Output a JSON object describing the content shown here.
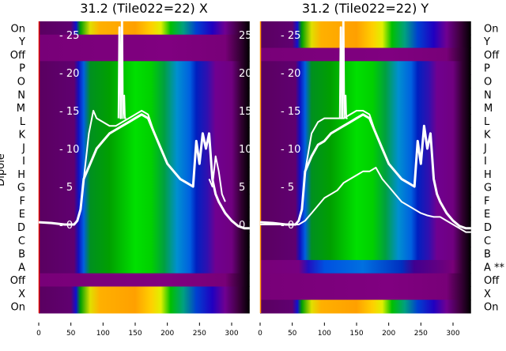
{
  "chart_data": {
    "type": "heatmap",
    "ylabel": "Dipole",
    "xlim": [
      0,
      328
    ],
    "xticks": [
      "0",
      "50",
      "100",
      "150",
      "200",
      "250",
      "300"
    ],
    "overlay_yticks": [
      "0",
      "5",
      "10",
      "15",
      "20",
      "25"
    ],
    "overlay_ylim": [
      -1,
      27
    ],
    "profiles": {
      "active": [
        [
          0,
          "#5a0060"
        ],
        [
          55,
          "#600070"
        ],
        [
          62,
          "#1010c0"
        ],
        [
          70,
          "#0060e0"
        ],
        [
          80,
          "#009020"
        ],
        [
          110,
          "#00a000"
        ],
        [
          150,
          "#00e000"
        ],
        [
          175,
          "#00d000"
        ],
        [
          195,
          "#00a040"
        ],
        [
          215,
          "#0090d0"
        ],
        [
          235,
          "#0060e0"
        ],
        [
          245,
          "#0020c0"
        ],
        [
          262,
          "#3010b0"
        ],
        [
          275,
          "#700090"
        ],
        [
          300,
          "#700080"
        ],
        [
          315,
          "#300030"
        ],
        [
          328,
          "#000000"
        ]
      ],
      "on": [
        [
          0,
          "#5a0060"
        ],
        [
          50,
          "#600070"
        ],
        [
          58,
          "#1010d0"
        ],
        [
          65,
          "#00a000"
        ],
        [
          80,
          "#e0e000"
        ],
        [
          95,
          "#ffb000"
        ],
        [
          150,
          "#ffa000"
        ],
        [
          175,
          "#ffd000"
        ],
        [
          190,
          "#e0f000"
        ],
        [
          205,
          "#00c000"
        ],
        [
          225,
          "#00a080"
        ],
        [
          245,
          "#0040d0"
        ],
        [
          270,
          "#2000c0"
        ],
        [
          290,
          "#700090"
        ],
        [
          310,
          "#400040"
        ],
        [
          328,
          "#000000"
        ]
      ],
      "off": [
        [
          0,
          "#780078"
        ],
        [
          200,
          "#800080"
        ],
        [
          290,
          "#780078"
        ],
        [
          315,
          "#300030"
        ],
        [
          328,
          "#000000"
        ]
      ],
      "dim": [
        [
          0,
          "#780078"
        ],
        [
          60,
          "#780080"
        ],
        [
          75,
          "#2010c0"
        ],
        [
          100,
          "#0050e0"
        ],
        [
          160,
          "#0070e0"
        ],
        [
          220,
          "#0030c0"
        ],
        [
          240,
          "#400090"
        ],
        [
          300,
          "#780078"
        ],
        [
          315,
          "#300030"
        ],
        [
          328,
          "#000000"
        ]
      ]
    },
    "panels": [
      {
        "title": "31.2 (Tile022=22) X",
        "rows": [
          {
            "label": "On",
            "profile": "on"
          },
          {
            "label": "Y",
            "profile": "off"
          },
          {
            "label": "Off",
            "profile": "off"
          },
          {
            "label": "P",
            "profile": "active"
          },
          {
            "label": "O",
            "profile": "active"
          },
          {
            "label": "N",
            "profile": "active"
          },
          {
            "label": "M",
            "profile": "active"
          },
          {
            "label": "L",
            "profile": "active"
          },
          {
            "label": "K",
            "profile": "active"
          },
          {
            "label": "J",
            "profile": "active"
          },
          {
            "label": "I",
            "profile": "active"
          },
          {
            "label": "H",
            "profile": "active"
          },
          {
            "label": "G",
            "profile": "active"
          },
          {
            "label": "F",
            "profile": "active"
          },
          {
            "label": "E",
            "profile": "active"
          },
          {
            "label": "D",
            "profile": "active"
          },
          {
            "label": "C",
            "profile": "active"
          },
          {
            "label": "B",
            "profile": "active"
          },
          {
            "label": "A",
            "profile": "active"
          },
          {
            "label": "Off",
            "profile": "off"
          },
          {
            "label": "X",
            "profile": "on"
          },
          {
            "label": "On",
            "profile": "on"
          }
        ],
        "series": [
          {
            "name": "main",
            "x": [
              0,
              20,
              40,
              55,
              60,
              65,
              70,
              80,
              90,
              100,
              110,
              120,
              130,
              140,
              150,
              160,
              170,
              180,
              190,
              200,
              210,
              220,
              230,
              240,
              245,
              250,
              255,
              260,
              265,
              270,
              275,
              280,
              290,
              300,
              310,
              320,
              328
            ],
            "y": [
              0.3,
              0.2,
              0,
              0,
              0.5,
              2,
              6,
              8,
              10,
              11,
              12,
              12.5,
              13,
              13.5,
              14,
              14.5,
              14,
              12,
              10,
              8,
              7,
              6,
              5.5,
              5,
              11,
              8,
              12,
              10,
              12,
              6,
              4,
              3,
              1.5,
              0.5,
              -0.2,
              -0.5,
              -0.5
            ]
          },
          {
            "name": "upper",
            "x": [
              70,
              78,
              85,
              90,
              100,
              110,
              120,
              130,
              140,
              150,
              160,
              170,
              180
            ],
            "y": [
              6,
              12,
              15,
              14,
              13.5,
              13,
              13,
              13.5,
              14,
              14.5,
              15,
              14.5,
              12
            ]
          },
          {
            "name": "spike",
            "x": [
              124,
              125,
              126,
              127,
              128,
              129,
              130,
              131,
              132,
              133,
              134,
              136
            ],
            "y": [
              14,
              26,
              26,
              14,
              14,
              28,
              28,
              14,
              16,
              17,
              14,
              14
            ]
          },
          {
            "name": "tail",
            "x": [
              265,
              270,
              275,
              280,
              285,
              290
            ],
            "y": [
              6,
              5,
              9,
              7,
              4,
              3
            ]
          }
        ]
      },
      {
        "title": "31.2 (Tile022=22) Y",
        "rows": [
          {
            "label": "On",
            "profile": "on"
          },
          {
            "label": "Y",
            "profile": "on"
          },
          {
            "label": "Off",
            "profile": "off"
          },
          {
            "label": "P",
            "profile": "active"
          },
          {
            "label": "O",
            "profile": "active"
          },
          {
            "label": "N",
            "profile": "active"
          },
          {
            "label": "M",
            "profile": "active"
          },
          {
            "label": "L",
            "profile": "active"
          },
          {
            "label": "K",
            "profile": "active"
          },
          {
            "label": "J",
            "profile": "active"
          },
          {
            "label": "I",
            "profile": "active"
          },
          {
            "label": "H",
            "profile": "active"
          },
          {
            "label": "G",
            "profile": "active"
          },
          {
            "label": "F",
            "profile": "active"
          },
          {
            "label": "E",
            "profile": "active"
          },
          {
            "label": "D",
            "profile": "active"
          },
          {
            "label": "C",
            "profile": "active"
          },
          {
            "label": "B",
            "profile": "active"
          },
          {
            "label": "A **",
            "profile": "dim"
          },
          {
            "label": "Off",
            "profile": "off"
          },
          {
            "label": "X",
            "profile": "off"
          },
          {
            "label": "On",
            "profile": "on"
          }
        ],
        "series": [
          {
            "name": "main",
            "x": [
              0,
              20,
              40,
              55,
              60,
              65,
              70,
              80,
              90,
              100,
              110,
              120,
              130,
              140,
              150,
              160,
              170,
              180,
              190,
              200,
              210,
              220,
              230,
              240,
              245,
              250,
              255,
              260,
              265,
              270,
              275,
              280,
              290,
              300,
              310,
              320,
              328
            ],
            "y": [
              0.3,
              0.2,
              0,
              0,
              0.5,
              2,
              7,
              9,
              10.5,
              11,
              12,
              12.5,
              13,
              13.5,
              14,
              14.5,
              14,
              12,
              10,
              8,
              7,
              6,
              5.5,
              5,
              11,
              8,
              13,
              10,
              12,
              6,
              4,
              3,
              1.5,
              0.5,
              -0.2,
              -0.5,
              -0.5
            ]
          },
          {
            "name": "upper",
            "x": [
              70,
              80,
              90,
              100,
              110,
              120,
              130,
              140,
              150,
              160,
              170,
              180
            ],
            "y": [
              7,
              12,
              13.5,
              14,
              14,
              14,
              14,
              14.5,
              15,
              15,
              14.5,
              12
            ]
          },
          {
            "name": "spike",
            "x": [
              124,
              125,
              126,
              127,
              128,
              129,
              130,
              131,
              132,
              133,
              134,
              136
            ],
            "y": [
              14,
              26,
              26,
              14,
              14,
              27,
              27,
              14,
              16,
              17,
              14,
              14
            ]
          },
          {
            "name": "lower",
            "x": [
              0,
              50,
              60,
              70,
              80,
              90,
              100,
              110,
              120,
              130,
              140,
              150,
              160,
              170,
              180,
              190,
              200,
              210,
              220,
              230,
              240,
              250,
              260,
              270,
              280,
              290,
              300,
              310,
              320,
              328
            ],
            "y": [
              0,
              0,
              0,
              0.5,
              1.5,
              2.5,
              3.5,
              4,
              4.5,
              5.5,
              6,
              6.5,
              7,
              7,
              7.5,
              6,
              5,
              4,
              3,
              2.5,
              2,
              1.5,
              1.2,
              1,
              1,
              0.5,
              0,
              -0.5,
              -1,
              -1
            ]
          }
        ]
      }
    ]
  }
}
